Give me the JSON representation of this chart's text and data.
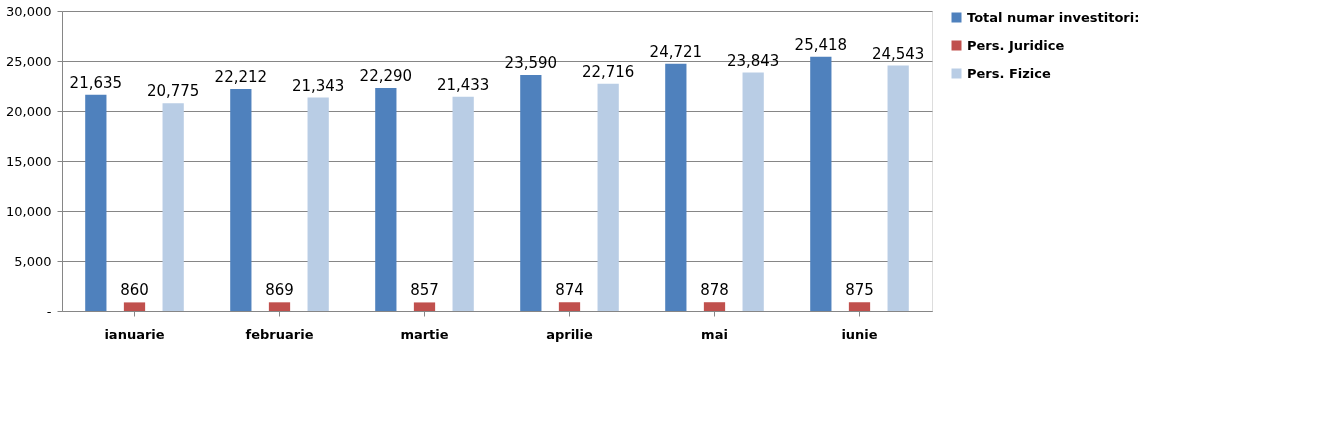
{
  "chart_data": {
    "type": "bar",
    "categories": [
      "ianuarie",
      "februarie",
      "martie",
      "aprilie",
      "mai",
      "iunie"
    ],
    "series": [
      {
        "name": "Total numar investitori:",
        "color": "#4f81bd",
        "values": [
          21635,
          22212,
          22290,
          23590,
          24721,
          25418
        ],
        "value_labels": [
          "21,635",
          "22,212",
          "22,290",
          "23,590",
          "24,721",
          "25,418"
        ]
      },
      {
        "name": "Pers. Juridice",
        "color": "#c0504d",
        "values": [
          860,
          869,
          857,
          874,
          878,
          875
        ],
        "value_labels": [
          "860",
          "869",
          "857",
          "874",
          "878",
          "875"
        ]
      },
      {
        "name": "Pers. Fizice",
        "color": "#b9cde5",
        "values": [
          20775,
          21343,
          21433,
          22716,
          23843,
          24543
        ],
        "value_labels": [
          "20,775",
          "21,343",
          "21,433",
          "22,716",
          "23,843",
          "24,543"
        ]
      }
    ],
    "ylim": [
      0,
      30000
    ],
    "yticks": [
      {
        "value": 0,
        "label": "-"
      },
      {
        "value": 5000,
        "label": "5,000"
      },
      {
        "value": 10000,
        "label": "10,000"
      },
      {
        "value": 15000,
        "label": "15,000"
      },
      {
        "value": 20000,
        "label": "20,000"
      },
      {
        "value": 25000,
        "label": "25,000"
      },
      {
        "value": 30000,
        "label": "30,000"
      }
    ],
    "grid": "y",
    "legend": "right"
  }
}
